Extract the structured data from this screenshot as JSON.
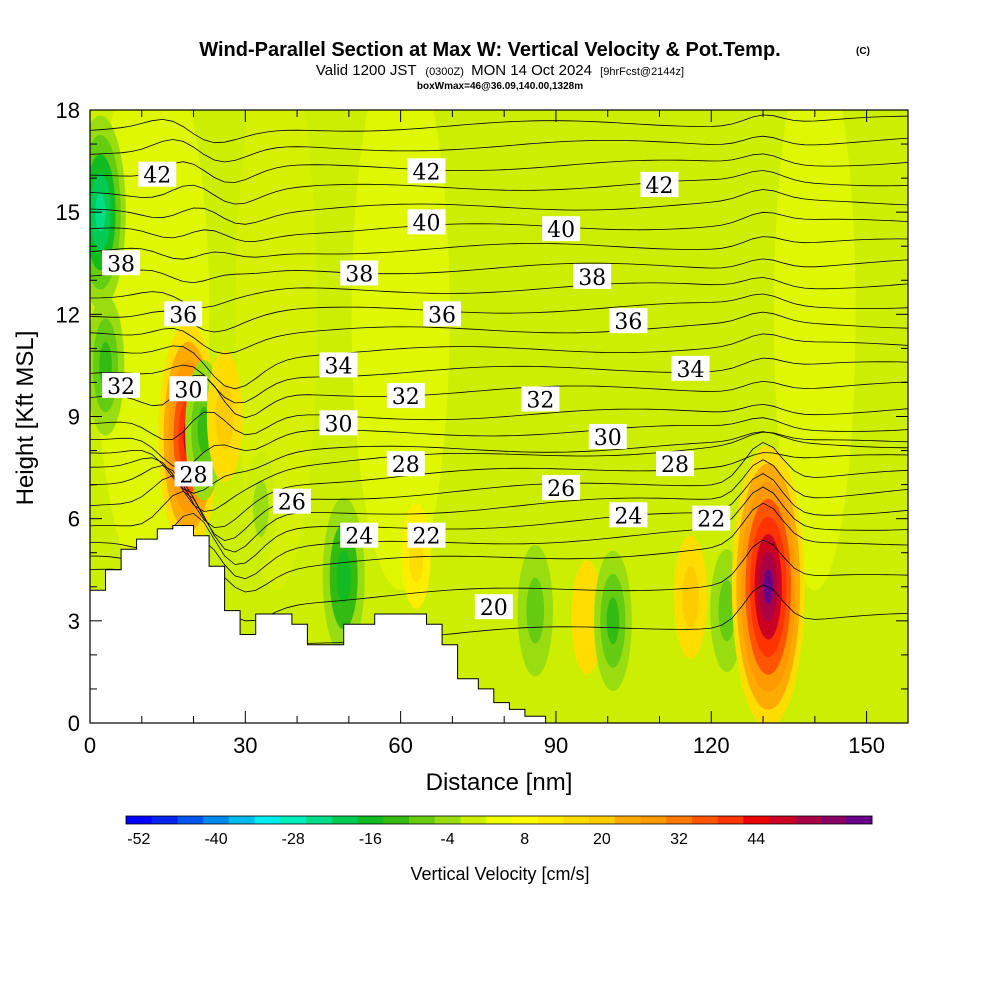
{
  "title": "Wind-Parallel Section at Max W: Vertical Velocity & Pot.Temp.",
  "title_mark": "(C)",
  "subtitle_a": "Valid 1200 JST",
  "subtitle_b": "(0300Z)",
  "subtitle_c": "MON 14 Oct 2024",
  "subtitle_d": "[9hrFcst@2144z]",
  "subtitle_line3": "boxWmax=46@36.09,140.00,1328m",
  "chart_data": {
    "type": "heatmap",
    "xlabel": "Distance [nm]",
    "ylabel": "Height [Kft MSL]",
    "xlim": [
      0,
      158
    ],
    "ylim": [
      0,
      18
    ],
    "x_ticks": [
      0,
      30,
      60,
      90,
      120,
      150
    ],
    "y_ticks": [
      0,
      3,
      6,
      9,
      12,
      15,
      18
    ],
    "colorbar": {
      "label": "Vertical Velocity [cm/s]",
      "tick_labels": [
        "-52",
        "-40",
        "-28",
        "-16",
        "-4",
        "8",
        "20",
        "32",
        "44"
      ],
      "colors": [
        "#0000ff",
        "#0022ee",
        "#0055ee",
        "#0088ee",
        "#00bbee",
        "#00eeee",
        "#00eebb",
        "#00dd88",
        "#00cc55",
        "#11bb22",
        "#33bb11",
        "#66cc11",
        "#99dd11",
        "#ccee00",
        "#eeff00",
        "#ffff00",
        "#ffee00",
        "#ffdd00",
        "#ffcc00",
        "#ffaa00",
        "#ff9900",
        "#ff7700",
        "#ff5500",
        "#ff3300",
        "#ee0000",
        "#cc0022",
        "#aa0044",
        "#880066",
        "#660088"
      ]
    },
    "terrain_kft": [
      [
        0,
        3.9
      ],
      [
        3,
        3.9
      ],
      [
        3,
        4.5
      ],
      [
        6,
        4.5
      ],
      [
        6,
        5.1
      ],
      [
        9,
        5.1
      ],
      [
        9,
        5.4
      ],
      [
        13,
        5.4
      ],
      [
        13,
        5.7
      ],
      [
        16,
        5.7
      ],
      [
        16,
        5.8
      ],
      [
        20,
        5.8
      ],
      [
        20,
        5.5
      ],
      [
        23,
        5.5
      ],
      [
        23,
        4.6
      ],
      [
        26,
        4.6
      ],
      [
        26,
        3.3
      ],
      [
        29,
        3.3
      ],
      [
        29,
        2.6
      ],
      [
        32,
        2.6
      ],
      [
        32,
        3.2
      ],
      [
        39,
        3.2
      ],
      [
        39,
        2.9
      ],
      [
        42,
        2.9
      ],
      [
        42,
        2.3
      ],
      [
        49,
        2.3
      ],
      [
        49,
        2.9
      ],
      [
        55,
        2.9
      ],
      [
        55,
        3.2
      ],
      [
        65,
        3.2
      ],
      [
        65,
        2.9
      ],
      [
        68,
        2.9
      ],
      [
        68,
        2.3
      ],
      [
        71,
        2.3
      ],
      [
        71,
        1.3
      ],
      [
        75,
        1.3
      ],
      [
        75,
        1.0
      ],
      [
        78,
        1.0
      ],
      [
        78,
        0.6
      ],
      [
        81,
        0.6
      ],
      [
        81,
        0.4
      ],
      [
        84,
        0.4
      ],
      [
        84,
        0.2
      ],
      [
        88,
        0.2
      ],
      [
        88,
        0.0
      ]
    ],
    "w_cells_cm_s": [
      {
        "x": 2,
        "y": 15,
        "w": -28
      },
      {
        "x": 3,
        "y": 10.5,
        "w": -16
      },
      {
        "x": 19,
        "y": 8.4,
        "w": 36
      },
      {
        "x": 22,
        "y": 8.6,
        "w": -16
      },
      {
        "x": 26,
        "y": 9.0,
        "w": 14
      },
      {
        "x": 33,
        "y": 6.3,
        "w": -10
      },
      {
        "x": 49,
        "y": 4.3,
        "w": -20
      },
      {
        "x": 63,
        "y": 4.9,
        "w": 8
      },
      {
        "x": 86,
        "y": 3.3,
        "w": -14
      },
      {
        "x": 96,
        "y": 3.1,
        "w": 10
      },
      {
        "x": 101,
        "y": 3.0,
        "w": -16
      },
      {
        "x": 116,
        "y": 3.7,
        "w": 12
      },
      {
        "x": 123,
        "y": 3.3,
        "w": -12
      },
      {
        "x": 131,
        "y": 4.0,
        "w": 48
      },
      {
        "x": 143,
        "y": 2.4,
        "w": -6
      }
    ],
    "theta_contour_labels": [
      {
        "value": "42",
        "x": 13,
        "y": 16.1
      },
      {
        "value": "42",
        "x": 65,
        "y": 16.2
      },
      {
        "value": "42",
        "x": 110,
        "y": 15.8
      },
      {
        "value": "40",
        "x": 65,
        "y": 14.7
      },
      {
        "value": "40",
        "x": 91,
        "y": 14.5
      },
      {
        "value": "38",
        "x": 6,
        "y": 13.5
      },
      {
        "value": "38",
        "x": 52,
        "y": 13.2
      },
      {
        "value": "38",
        "x": 97,
        "y": 13.1
      },
      {
        "value": "36",
        "x": 18,
        "y": 12.0
      },
      {
        "value": "36",
        "x": 68,
        "y": 12.0
      },
      {
        "value": "36",
        "x": 104,
        "y": 11.8
      },
      {
        "value": "34",
        "x": 48,
        "y": 10.5
      },
      {
        "value": "34",
        "x": 116,
        "y": 10.4
      },
      {
        "value": "32",
        "x": 6,
        "y": 9.9
      },
      {
        "value": "32",
        "x": 61,
        "y": 9.6
      },
      {
        "value": "32",
        "x": 87,
        "y": 9.5
      },
      {
        "value": "30",
        "x": 19,
        "y": 9.8
      },
      {
        "value": "30",
        "x": 48,
        "y": 8.8
      },
      {
        "value": "30",
        "x": 100,
        "y": 8.4
      },
      {
        "value": "28",
        "x": 20,
        "y": 7.3
      },
      {
        "value": "28",
        "x": 61,
        "y": 7.6
      },
      {
        "value": "28",
        "x": 113,
        "y": 7.6
      },
      {
        "value": "26",
        "x": 39,
        "y": 6.5
      },
      {
        "value": "26",
        "x": 91,
        "y": 6.9
      },
      {
        "value": "24",
        "x": 52,
        "y": 5.5
      },
      {
        "value": "24",
        "x": 104,
        "y": 6.1
      },
      {
        "value": "22",
        "x": 65,
        "y": 5.5
      },
      {
        "value": "22",
        "x": 120,
        "y": 6.0
      },
      {
        "value": "20",
        "x": 78,
        "y": 3.4
      }
    ]
  }
}
